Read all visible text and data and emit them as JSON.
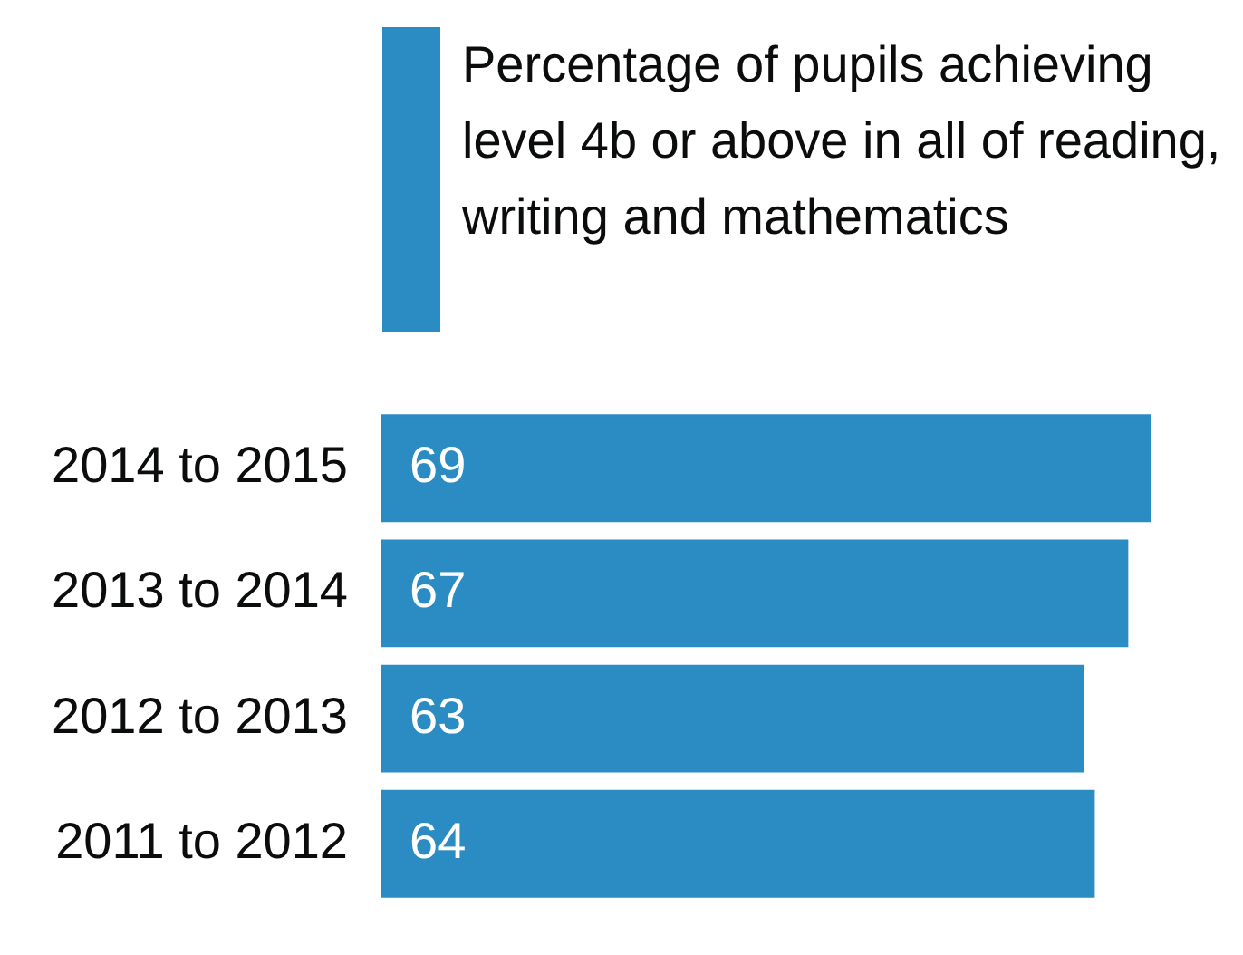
{
  "chart_data": {
    "type": "bar",
    "orientation": "horizontal",
    "categories": [
      "2014 to 2015",
      "2013 to 2014",
      "2012 to 2013",
      "2011 to 2012"
    ],
    "series": [
      {
        "name": "Percentage of pupils achieving level 4b or above in all of reading, writing and mathematics",
        "color": "#2b8cc4",
        "values": [
          69,
          67,
          63,
          64
        ]
      }
    ],
    "data_labels": true,
    "legend": "top"
  }
}
